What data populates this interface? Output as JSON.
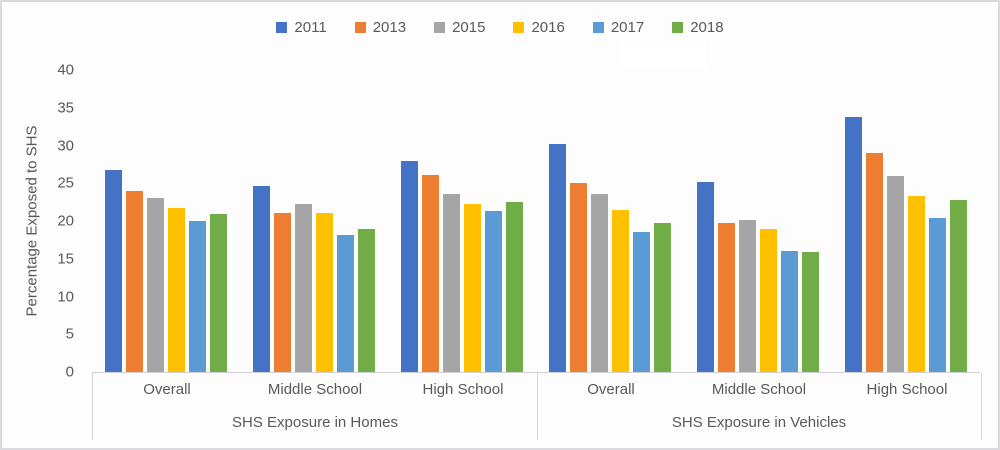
{
  "chart_data": {
    "type": "bar",
    "title": "",
    "xlabel": "",
    "ylabel": "Percentage Exposed to SHS",
    "ylim": [
      0,
      40
    ],
    "yticks": [
      0,
      5,
      10,
      15,
      20,
      25,
      30,
      35,
      40
    ],
    "grid": false,
    "legend_position": "top-center",
    "text_color": "#595959",
    "axis_line_color": "#d6d6dc",
    "legend": [
      {
        "label": "2011",
        "color": "#4472C4"
      },
      {
        "label": "2013",
        "color": "#ED7D31"
      },
      {
        "label": "2015",
        "color": "#A5A5A5"
      },
      {
        "label": "2016",
        "color": "#FFC000"
      },
      {
        "label": "2017",
        "color": "#5B9BD5"
      },
      {
        "label": "2018",
        "color": "#70AD47"
      }
    ],
    "groups": [
      {
        "label": "SHS Exposure in Homes",
        "categories": [
          "Overall",
          "Middle School",
          "High School"
        ],
        "series": [
          {
            "name": "2011",
            "values": [
              26.8,
              24.7,
              28.0
            ]
          },
          {
            "name": "2013",
            "values": [
              24.0,
              21.0,
              26.1
            ]
          },
          {
            "name": "2015",
            "values": [
              23.0,
              22.3,
              23.6
            ]
          },
          {
            "name": "2016",
            "values": [
              21.7,
              21.1,
              22.2
            ]
          },
          {
            "name": "2017",
            "values": [
              20.0,
              18.2,
              21.3
            ]
          },
          {
            "name": "2018",
            "values": [
              20.9,
              18.9,
              22.5
            ]
          }
        ]
      },
      {
        "label": "SHS Exposure in Vehicles",
        "categories": [
          "Overall",
          "Middle School",
          "High School"
        ],
        "series": [
          {
            "name": "2011",
            "values": [
              30.2,
              25.2,
              33.8
            ]
          },
          {
            "name": "2013",
            "values": [
              25.0,
              19.7,
              29.0
            ]
          },
          {
            "name": "2015",
            "values": [
              23.6,
              20.2,
              25.9
            ]
          },
          {
            "name": "2016",
            "values": [
              21.5,
              18.9,
              23.3
            ]
          },
          {
            "name": "2017",
            "values": [
              18.5,
              16.0,
              20.4
            ]
          },
          {
            "name": "2018",
            "values": [
              19.8,
              15.9,
              22.8
            ]
          }
        ]
      }
    ]
  }
}
